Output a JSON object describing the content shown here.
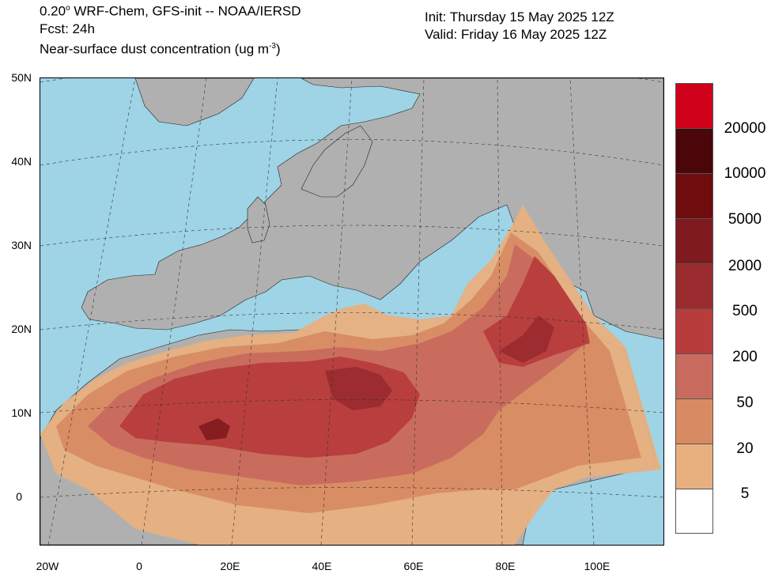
{
  "header": {
    "model_line_pre": "0.20",
    "model_line_deg": "o",
    "model_line_post": " WRF-Chem, GFS-init -- NOAA/IERSD",
    "forecast": "Fcst: 24h",
    "field_pre": "Near-surface dust concentration (ug m",
    "field_exp": "-3",
    "field_post": ")",
    "init": "Init: Thursday 15 May 2025  12Z",
    "valid": "Valid: Friday 16 May 2025  12Z"
  },
  "axes": {
    "lat_labels": [
      "50N",
      "40N",
      "30N",
      "20N",
      "10N",
      "0"
    ],
    "lon_labels": [
      "20W",
      "0",
      "20E",
      "40E",
      "60E",
      "80E",
      "100E"
    ]
  },
  "colorbar": {
    "labels": [
      "20000",
      "10000",
      "5000",
      "2000",
      "500",
      "200",
      "50",
      "20",
      "5"
    ],
    "colors": [
      "#d0021b",
      "#4a0608",
      "#6e0c0e",
      "#7f1a1e",
      "#9a2b2e",
      "#b83c3c",
      "#c86a5e",
      "#d88b63",
      "#e8b07f",
      "#ffffff"
    ]
  },
  "colors": {
    "ocean": "#9fd3e6",
    "land": "#b0b0b0",
    "dust_5": "#e8b07f",
    "dust_20": "#d88b63",
    "dust_50": "#c86a5e",
    "dust_200": "#b83c3c",
    "dust_500": "#9a2b2e",
    "dust_2000": "#7f1a1e"
  }
}
